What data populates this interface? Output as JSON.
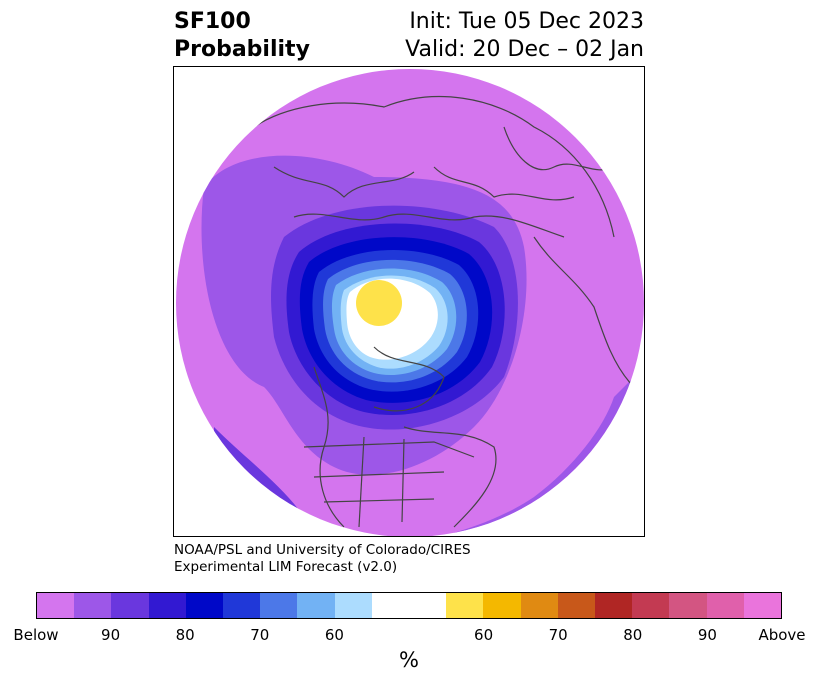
{
  "header": {
    "variable": "SF100",
    "subtitle": "Probability",
    "init": "Init: Tue 05 Dec 2023",
    "valid": "Valid: 20 Dec – 02 Jan"
  },
  "credit": {
    "line1": "NOAA/PSL and University of Colorado/CIRES",
    "line2": "Experimental LIM Forecast (v2.0)"
  },
  "colorbar": {
    "colors": [
      "#d475ee",
      "#9d57e8",
      "#6a37de",
      "#3219d2",
      "#0008c8",
      "#2038d8",
      "#4c78e8",
      "#72b2f4",
      "#acdcfe",
      "#ffffff",
      "#ffffff",
      "#fee24a",
      "#f4b800",
      "#e08a12",
      "#c8581a",
      "#b02624",
      "#c33a52",
      "#d35582",
      "#e060ab",
      "#ea74dc"
    ],
    "tick_labels": [
      "Below",
      "90",
      "80",
      "70",
      "60",
      "60",
      "70",
      "80",
      "90",
      "Above"
    ],
    "unit_label": "%"
  },
  "map": {
    "projection": "north polar stereographic",
    "field_colors": {
      "background_purple": "#d475ee",
      "ring_90": "#9d57e8",
      "ring_85": "#6a37de",
      "ring_80": "#3219d2",
      "ring_75": "#0008c8",
      "ring_70": "#2038d8",
      "ring_65": "#4c78e8",
      "ring_60": "#72b2f4",
      "ring_55": "#acdcfe",
      "neutral": "#ffffff",
      "above_60": "#fee24a"
    },
    "coastline_color": "#444444"
  }
}
